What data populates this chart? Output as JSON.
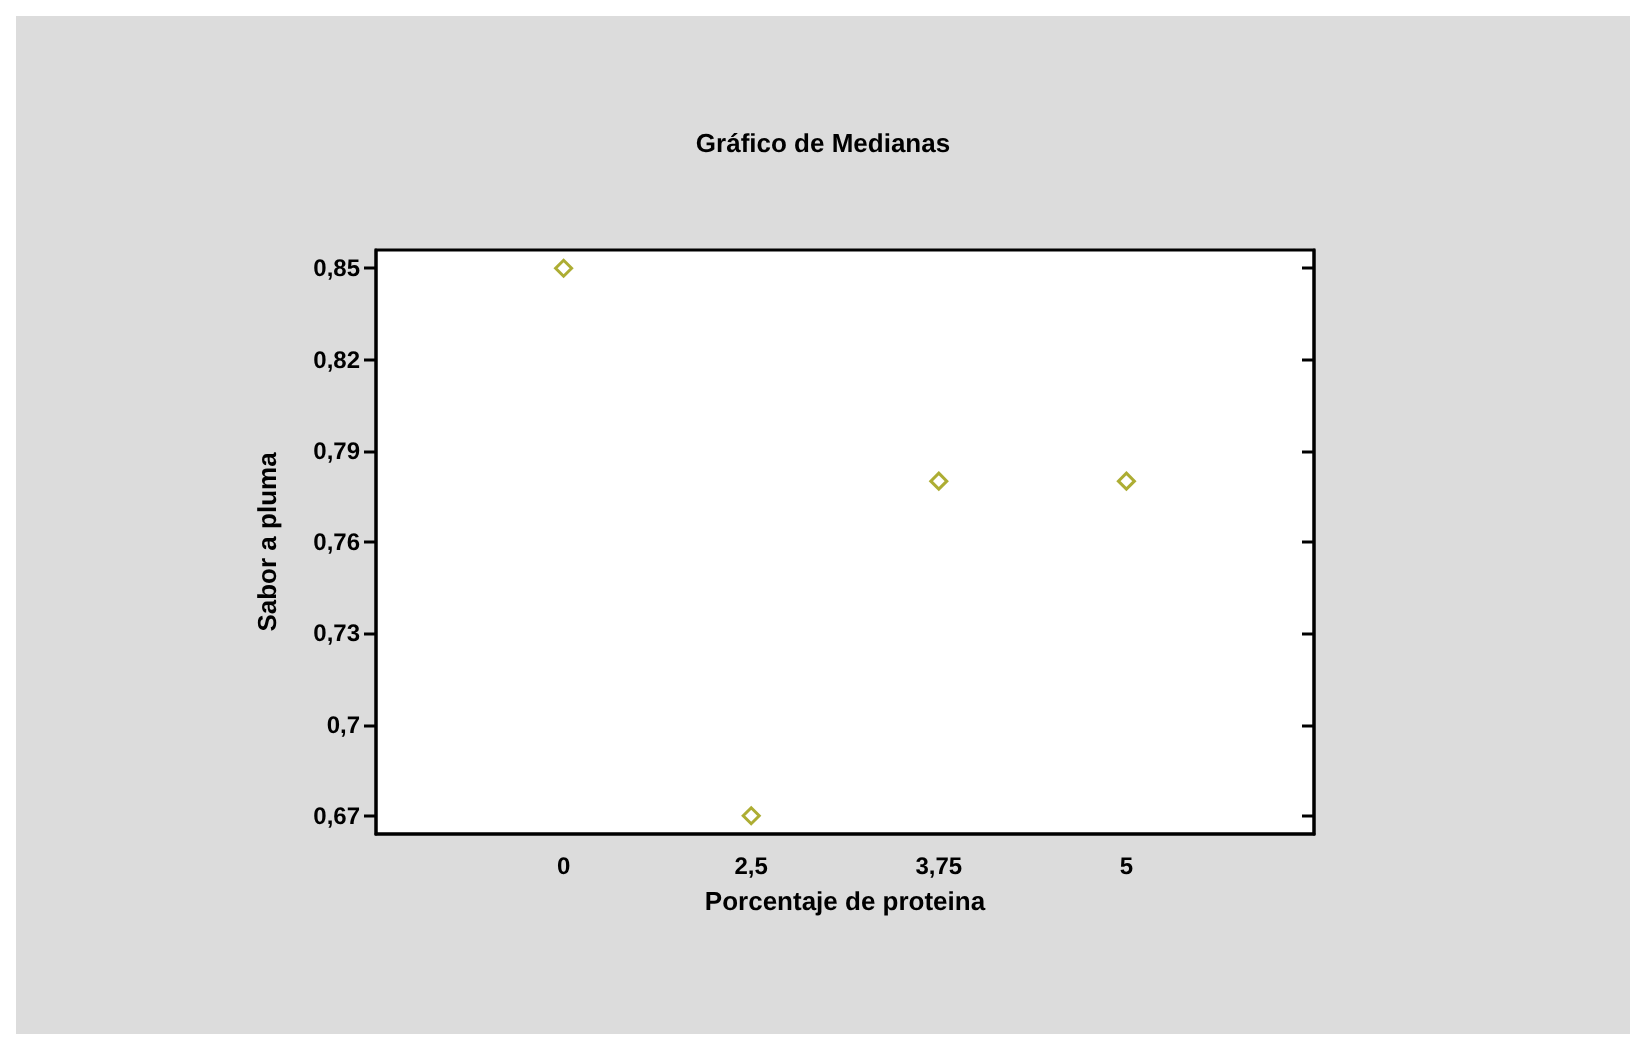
{
  "chart_data": {
    "type": "scatter",
    "title": "Gráfico de Medianas",
    "xlabel": "Porcentaje de proteina",
    "ylabel": "Sabor a pluma",
    "categories": [
      "0",
      "2,5",
      "3,75",
      "5"
    ],
    "series": [
      {
        "color": "#999900",
        "values": [
          0.85,
          0.67,
          0.78,
          0.78
        ]
      }
    ],
    "marker": "diamond",
    "ylim": [
      0.664,
      0.856
    ],
    "yticks": [
      {
        "value": 0.67,
        "label": "0,67"
      },
      {
        "value": 0.7,
        "label": "0,7"
      },
      {
        "value": 0.73,
        "label": "0,73"
      },
      {
        "value": 0.76,
        "label": "0,76"
      },
      {
        "value": 0.79,
        "label": "0,79"
      },
      {
        "value": 0.82,
        "label": "0,82"
      },
      {
        "value": 0.85,
        "label": "0,85"
      }
    ],
    "grid": false
  }
}
